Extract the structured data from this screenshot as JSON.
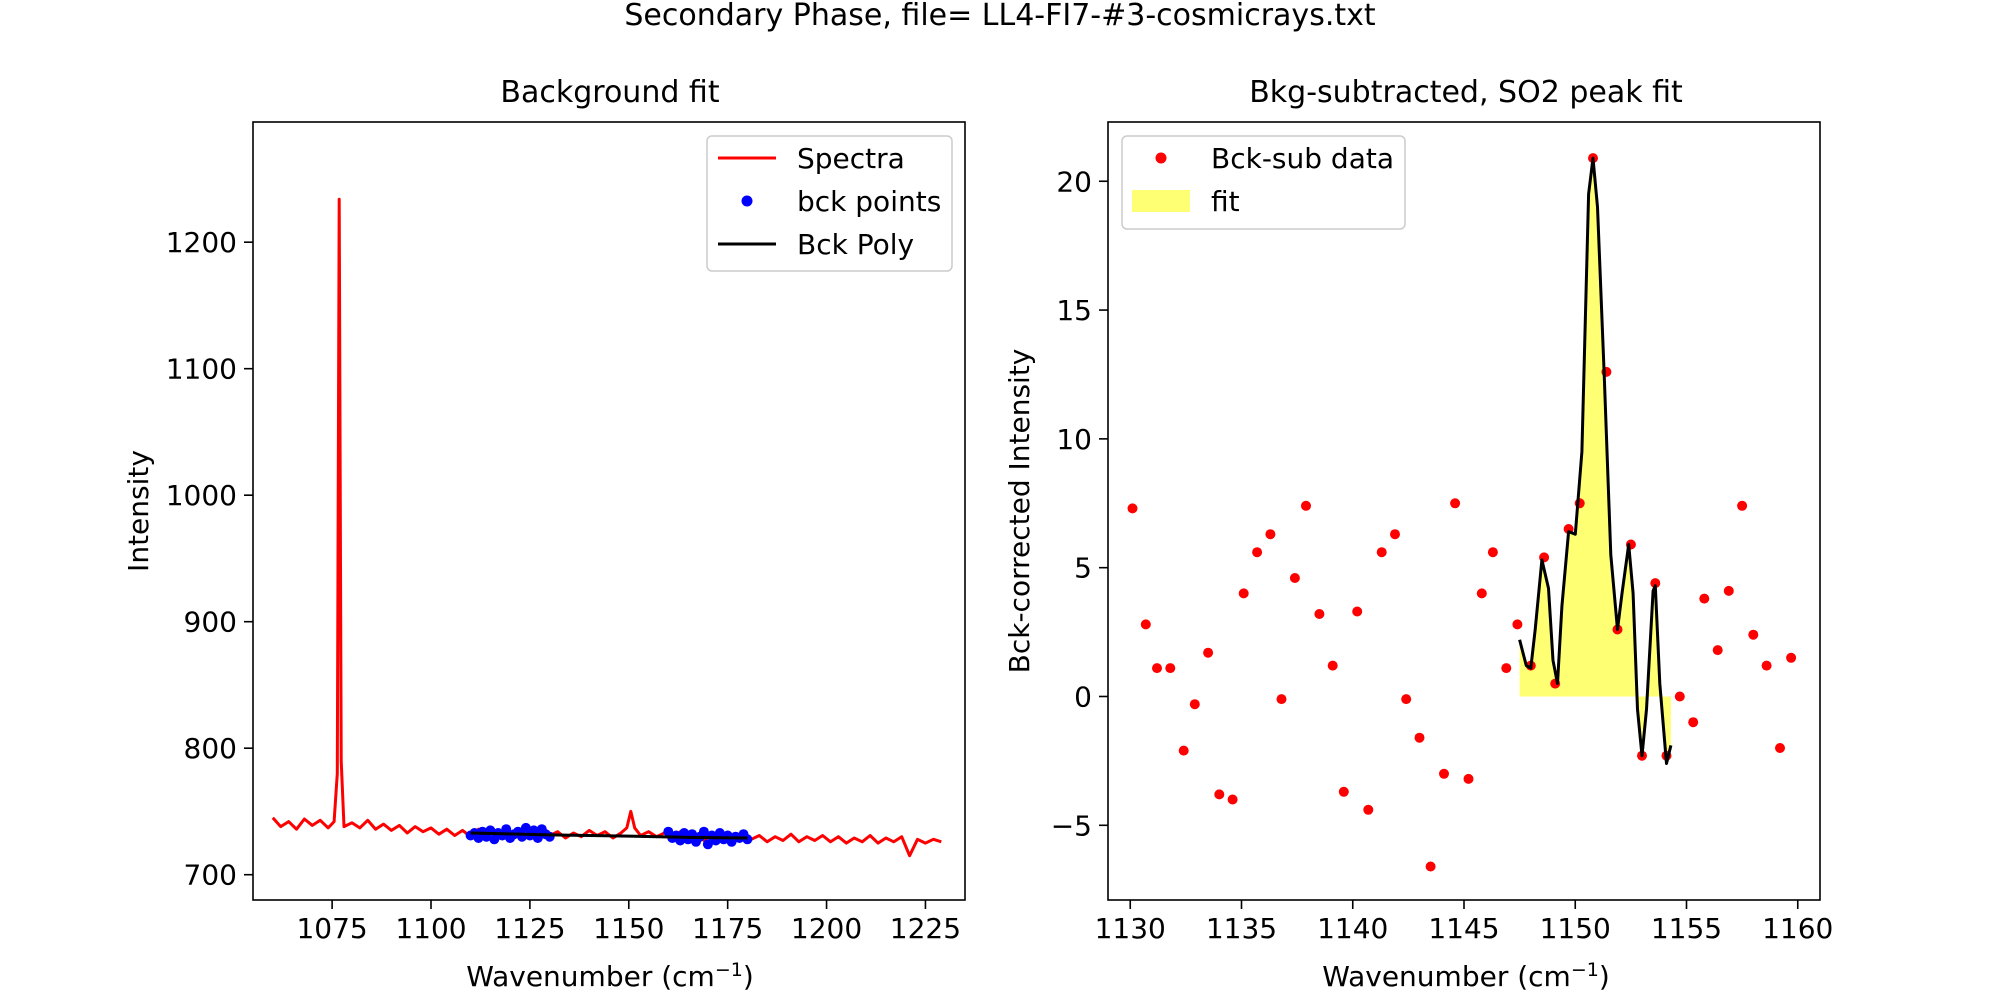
{
  "figure": {
    "suptitle": "Secondary Phase, file= LL4-FI7-#3-cosmicrays.txt"
  },
  "chart_data": [
    {
      "type": "line",
      "title": "Background fit",
      "xlabel_main": "Wavenumber (cm",
      "xlabel_sup": "−1",
      "xlabel_end": ")",
      "ylabel": "Intensity",
      "xlim": [
        1055,
        1235
      ],
      "ylim": [
        680,
        1295
      ],
      "xticks": [
        1075,
        1100,
        1125,
        1150,
        1175,
        1200,
        1225
      ],
      "yticks": [
        700,
        800,
        900,
        1000,
        1100,
        1200
      ],
      "legend": {
        "position": "upper-right",
        "entries": [
          "Spectra",
          "bck points",
          "Bck Poly"
        ]
      },
      "series": [
        {
          "name": "Spectra",
          "color": "#ff0000",
          "points": [
            [
              1060,
              745
            ],
            [
              1062,
              738
            ],
            [
              1064,
              742
            ],
            [
              1066,
              736
            ],
            [
              1068,
              744
            ],
            [
              1070,
              739
            ],
            [
              1072,
              743
            ],
            [
              1074,
              737
            ],
            [
              1075.5,
              742
            ],
            [
              1076.3,
              780
            ],
            [
              1076.8,
              1234
            ],
            [
              1077.3,
              790
            ],
            [
              1078,
              738
            ],
            [
              1080,
              741
            ],
            [
              1082,
              737
            ],
            [
              1084,
              743
            ],
            [
              1086,
              736
            ],
            [
              1088,
              740
            ],
            [
              1090,
              735
            ],
            [
              1092,
              739
            ],
            [
              1094,
              733
            ],
            [
              1096,
              738
            ],
            [
              1098,
              734
            ],
            [
              1100,
              737
            ],
            [
              1102,
              732
            ],
            [
              1104,
              736
            ],
            [
              1106,
              731
            ],
            [
              1108,
              735
            ],
            [
              1110,
              730
            ],
            [
              1112,
              736
            ],
            [
              1114,
              731
            ],
            [
              1116,
              735
            ],
            [
              1118,
              729
            ],
            [
              1120,
              734
            ],
            [
              1122,
              730
            ],
            [
              1124,
              736
            ],
            [
              1126,
              732
            ],
            [
              1128,
              735
            ],
            [
              1130,
              731
            ],
            [
              1132,
              734
            ],
            [
              1134,
              729
            ],
            [
              1136,
              733
            ],
            [
              1138,
              730
            ],
            [
              1140,
              735
            ],
            [
              1142,
              731
            ],
            [
              1144,
              734
            ],
            [
              1146,
              729
            ],
            [
              1148,
              733
            ],
            [
              1149.5,
              737
            ],
            [
              1150.5,
              750
            ],
            [
              1151.5,
              737
            ],
            [
              1153,
              731
            ],
            [
              1155,
              734
            ],
            [
              1157,
              730
            ],
            [
              1159,
              733
            ],
            [
              1161,
              729
            ],
            [
              1163,
              734
            ],
            [
              1165,
              728
            ],
            [
              1167,
              732
            ],
            [
              1169,
              727
            ],
            [
              1171,
              733
            ],
            [
              1173,
              728
            ],
            [
              1175,
              731
            ],
            [
              1177,
              727
            ],
            [
              1179,
              732
            ],
            [
              1181,
              728
            ],
            [
              1183,
              731
            ],
            [
              1185,
              726
            ],
            [
              1187,
              730
            ],
            [
              1189,
              727
            ],
            [
              1191,
              732
            ],
            [
              1193,
              726
            ],
            [
              1195,
              730
            ],
            [
              1197,
              727
            ],
            [
              1199,
              731
            ],
            [
              1201,
              726
            ],
            [
              1203,
              730
            ],
            [
              1205,
              725
            ],
            [
              1207,
              729
            ],
            [
              1209,
              726
            ],
            [
              1211,
              731
            ],
            [
              1213,
              725
            ],
            [
              1215,
              729
            ],
            [
              1217,
              726
            ],
            [
              1219,
              730
            ],
            [
              1221,
              715
            ],
            [
              1223,
              728
            ],
            [
              1225,
              725
            ],
            [
              1227,
              728
            ],
            [
              1229,
              726
            ]
          ]
        },
        {
          "name": "bck points",
          "color": "#0000ff",
          "points": [
            [
              1110,
              731
            ],
            [
              1111,
              733
            ],
            [
              1112,
              729
            ],
            [
              1113,
              734
            ],
            [
              1114,
              730
            ],
            [
              1115,
              735
            ],
            [
              1116,
              728
            ],
            [
              1117,
              733
            ],
            [
              1118,
              731
            ],
            [
              1119,
              736
            ],
            [
              1120,
              729
            ],
            [
              1121,
              732
            ],
            [
              1122,
              734
            ],
            [
              1123,
              730
            ],
            [
              1124,
              737
            ],
            [
              1125,
              731
            ],
            [
              1126,
              735
            ],
            [
              1127,
              729
            ],
            [
              1128,
              736
            ],
            [
              1129,
              732
            ],
            [
              1130,
              730
            ],
            [
              1160,
              734
            ],
            [
              1161,
              729
            ],
            [
              1162,
              731
            ],
            [
              1163,
              727
            ],
            [
              1164,
              733
            ],
            [
              1165,
              728
            ],
            [
              1166,
              732
            ],
            [
              1167,
              726
            ],
            [
              1168,
              730
            ],
            [
              1169,
              734
            ],
            [
              1170,
              724
            ],
            [
              1171,
              731
            ],
            [
              1172,
              727
            ],
            [
              1173,
              733
            ],
            [
              1174,
              728
            ],
            [
              1175,
              731
            ],
            [
              1176,
              726
            ],
            [
              1177,
              730
            ],
            [
              1178,
              729
            ],
            [
              1179,
              732
            ],
            [
              1180,
              728
            ]
          ]
        },
        {
          "name": "Bck Poly",
          "color": "#000000",
          "points": [
            [
              1110,
              733
            ],
            [
              1130,
              731.5
            ],
            [
              1150,
              730.5
            ],
            [
              1165,
              729.5
            ],
            [
              1180,
              729
            ]
          ]
        }
      ]
    },
    {
      "type": "scatter",
      "title": "Bkg-subtracted, SO2 peak fit",
      "xlabel_main": "Wavenumber (cm",
      "xlabel_sup": "−1",
      "xlabel_end": ")",
      "ylabel": "Bck-corrected Intensity",
      "xlim": [
        1129,
        1161
      ],
      "ylim": [
        -7.9,
        22.3
      ],
      "xticks": [
        1130,
        1135,
        1140,
        1145,
        1150,
        1155,
        1160
      ],
      "yticks": [
        -5,
        0,
        5,
        10,
        15,
        20
      ],
      "legend": {
        "position": "upper-left",
        "entries": [
          "Bck-sub data",
          "fit"
        ]
      },
      "series": [
        {
          "name": "Bck-sub data",
          "color": "#ff0000",
          "points": [
            [
              1130.1,
              7.3
            ],
            [
              1130.7,
              2.8
            ],
            [
              1131.2,
              1.1
            ],
            [
              1131.8,
              1.1
            ],
            [
              1132.4,
              -2.1
            ],
            [
              1132.9,
              -0.3
            ],
            [
              1133.5,
              1.7
            ],
            [
              1134.0,
              -3.8
            ],
            [
              1134.6,
              -4.0
            ],
            [
              1135.1,
              4.0
            ],
            [
              1135.7,
              5.6
            ],
            [
              1136.3,
              6.3
            ],
            [
              1136.8,
              -0.1
            ],
            [
              1137.4,
              4.6
            ],
            [
              1137.9,
              7.4
            ],
            [
              1138.5,
              3.2
            ],
            [
              1139.1,
              1.2
            ],
            [
              1139.6,
              -3.7
            ],
            [
              1140.2,
              3.3
            ],
            [
              1140.7,
              -4.4
            ],
            [
              1141.3,
              5.6
            ],
            [
              1141.9,
              6.3
            ],
            [
              1142.4,
              -0.1
            ],
            [
              1143.0,
              -1.6
            ],
            [
              1143.5,
              -6.6
            ],
            [
              1144.1,
              -3.0
            ],
            [
              1144.6,
              7.5
            ],
            [
              1145.2,
              -3.2
            ],
            [
              1145.8,
              4.0
            ],
            [
              1146.3,
              5.6
            ],
            [
              1146.9,
              1.1
            ],
            [
              1147.4,
              2.8
            ],
            [
              1148.0,
              1.2
            ],
            [
              1148.6,
              5.4
            ],
            [
              1149.1,
              0.5
            ],
            [
              1149.7,
              6.5
            ],
            [
              1150.2,
              7.5
            ],
            [
              1150.8,
              20.9
            ],
            [
              1151.4,
              12.6
            ],
            [
              1151.9,
              2.6
            ],
            [
              1152.5,
              5.9
            ],
            [
              1153.0,
              -2.3
            ],
            [
              1153.6,
              4.4
            ],
            [
              1154.1,
              -2.3
            ],
            [
              1154.7,
              0.0
            ],
            [
              1155.3,
              -1.0
            ],
            [
              1155.8,
              3.8
            ],
            [
              1156.4,
              1.8
            ],
            [
              1156.9,
              4.1
            ],
            [
              1157.5,
              7.4
            ],
            [
              1158.0,
              2.4
            ],
            [
              1158.6,
              1.2
            ],
            [
              1159.2,
              -2.0
            ],
            [
              1159.7,
              1.5
            ]
          ]
        },
        {
          "name": "fit",
          "color": "#000000",
          "fill": "#ffff00",
          "points": [
            [
              1147.5,
              2.2
            ],
            [
              1147.8,
              1.2
            ],
            [
              1148.0,
              1.1
            ],
            [
              1148.2,
              2.6
            ],
            [
              1148.5,
              5.3
            ],
            [
              1148.8,
              4.2
            ],
            [
              1149.0,
              1.4
            ],
            [
              1149.2,
              0.5
            ],
            [
              1149.4,
              3.5
            ],
            [
              1149.7,
              6.4
            ],
            [
              1150.0,
              6.3
            ],
            [
              1150.3,
              9.5
            ],
            [
              1150.6,
              19.5
            ],
            [
              1150.8,
              20.9
            ],
            [
              1151.0,
              19.0
            ],
            [
              1151.3,
              12.5
            ],
            [
              1151.6,
              5.5
            ],
            [
              1151.9,
              2.6
            ],
            [
              1152.1,
              4.0
            ],
            [
              1152.4,
              5.9
            ],
            [
              1152.6,
              4.0
            ],
            [
              1152.8,
              -0.5
            ],
            [
              1153.0,
              -2.3
            ],
            [
              1153.2,
              -0.5
            ],
            [
              1153.5,
              4.1
            ],
            [
              1153.6,
              4.3
            ],
            [
              1153.8,
              0.5
            ],
            [
              1154.1,
              -2.6
            ],
            [
              1154.3,
              -1.9
            ]
          ]
        }
      ]
    }
  ]
}
